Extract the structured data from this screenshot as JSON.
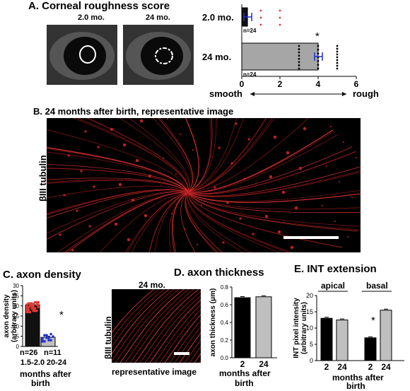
{
  "panelA": {
    "title": "A.  Corneal roughness score",
    "label_left_img": "2.0 mo.",
    "label_right_img": "24 mo.",
    "x_low": "smooth",
    "x_high": "rough",
    "star": "*"
  },
  "panelB": {
    "title": "B.  24 months after birth, representative image",
    "ylabel": "βIII tubulin"
  },
  "panelC": {
    "title": "C. axon density",
    "xlabel_line1": "months after",
    "xlabel_line2": "birth",
    "star": "*"
  },
  "panelD": {
    "title": "D. axon thickness",
    "img_label": "24 mo.",
    "caption": "representative image",
    "ylabel": "βIII tubulin",
    "xlabel_line1": "months after",
    "xlabel_line2": "birth"
  },
  "panelE": {
    "title": "E. INT extension",
    "group1": "apical",
    "group2": "basal",
    "xlabel_line1": "months after",
    "xlabel_line2": "birth",
    "star": "*"
  },
  "chart_data": [
    {
      "id": "A",
      "type": "bar",
      "orientation": "horizontal",
      "categories": [
        "2.0 mo.",
        "24 mo."
      ],
      "values": [
        0.3,
        4.0
      ],
      "n_labels": [
        "n=24",
        "n=24"
      ],
      "xlim": [
        0,
        6
      ],
      "xticks": [
        "0",
        "2",
        "4",
        "6"
      ],
      "points": {
        "2.0 mo.": [
          1,
          1,
          1,
          2,
          2,
          2
        ],
        "24 mo.": [
          3,
          3,
          3,
          3,
          3,
          3,
          3,
          3,
          4,
          4,
          4,
          4,
          4,
          4,
          4,
          5,
          5,
          5,
          5,
          5,
          5,
          5,
          5,
          5
        ]
      },
      "colors": {
        "2.0 mo.": "#111111",
        "24 mo.": "#a6a6a6",
        "dots_young": "#e53935",
        "errbar": "#1f2fd6"
      }
    },
    {
      "id": "C",
      "type": "bar",
      "ylabel": "axon density\n(arbitrary units)",
      "categories": [
        "1.5-2.0",
        "20-24"
      ],
      "values": [
        20.5,
        4.5
      ],
      "n_labels": [
        "n=26",
        "n=11"
      ],
      "ylim": [
        0,
        30
      ],
      "yticks": [
        "0",
        "5",
        "10",
        "15",
        "20",
        "25",
        "30"
      ],
      "colors": [
        "#111111",
        "#bfbfbf"
      ],
      "dot_colors": [
        "#e53935",
        "#1f2fd6"
      ]
    },
    {
      "id": "D",
      "type": "bar",
      "ylabel": "axon thickness (μm)",
      "categories": [
        "2",
        "24"
      ],
      "values": [
        0.68,
        0.69
      ],
      "ylim": [
        0,
        0.8
      ],
      "yticks": [
        "0.0",
        "0.2",
        "0.4",
        "0.6",
        "0.8"
      ],
      "colors": [
        "#000000",
        "#bfbfbf"
      ]
    },
    {
      "id": "E",
      "type": "bar",
      "ylabel": "INT pixel intensity\n(arbitrary units)",
      "categories": [
        "2",
        "24",
        "2",
        "24"
      ],
      "values": [
        13,
        12.5,
        7,
        15.5
      ],
      "ylim": [
        0,
        20
      ],
      "yticks": [
        "0",
        "5",
        "10",
        "15",
        "20"
      ],
      "colors": [
        "#000000",
        "#bfbfbf",
        "#000000",
        "#bfbfbf"
      ]
    }
  ]
}
